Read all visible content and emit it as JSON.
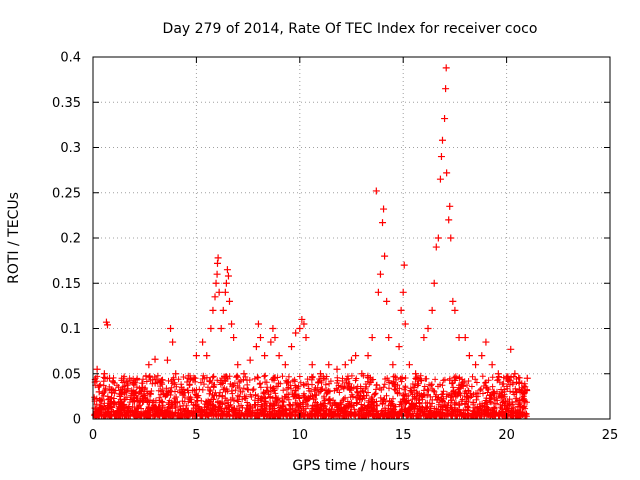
{
  "chart_data": {
    "type": "scatter",
    "title": "Day 279 of 2014, Rate Of TEC Index for receiver coco",
    "xlabel": "GPS time / hours",
    "ylabel": "ROTI / TECUs",
    "xlim": [
      0,
      25
    ],
    "ylim": [
      0,
      0.4
    ],
    "x_ticks": [
      0,
      5,
      10,
      15,
      20,
      25
    ],
    "y_ticks": [
      0,
      0.05,
      0.1,
      0.15,
      0.2,
      0.25,
      0.3,
      0.35,
      0.4
    ],
    "x_tick_labels": [
      "0",
      "5",
      "10",
      "15",
      "20",
      "25"
    ],
    "y_tick_labels": [
      "0",
      "0.05",
      "0.1",
      "0.15",
      "0.2",
      "0.25",
      "0.3",
      "0.35",
      "0.4"
    ],
    "grid": true,
    "marker": "+",
    "marker_color": "#ff0000",
    "series": [
      {
        "name": "ROTI",
        "points": [
          [
            0.1,
            0.012
          ],
          [
            0.2,
            0.055
          ],
          [
            0.3,
            0.03
          ],
          [
            0.4,
            0.02
          ],
          [
            0.55,
            0.05
          ],
          [
            0.65,
            0.107
          ],
          [
            0.7,
            0.104
          ],
          [
            0.8,
            0.045
          ],
          [
            1.0,
            0.018
          ],
          [
            1.3,
            0.025
          ],
          [
            1.6,
            0.03
          ],
          [
            2.0,
            0.02
          ],
          [
            2.4,
            0.035
          ],
          [
            2.7,
            0.06
          ],
          [
            3.0,
            0.066
          ],
          [
            3.3,
            0.04
          ],
          [
            3.6,
            0.065
          ],
          [
            3.75,
            0.1
          ],
          [
            3.85,
            0.085
          ],
          [
            4.0,
            0.05
          ],
          [
            4.3,
            0.03
          ],
          [
            4.6,
            0.045
          ],
          [
            5.0,
            0.07
          ],
          [
            5.3,
            0.085
          ],
          [
            5.5,
            0.07
          ],
          [
            5.7,
            0.1
          ],
          [
            5.8,
            0.12
          ],
          [
            5.9,
            0.135
          ],
          [
            5.95,
            0.15
          ],
          [
            6.0,
            0.16
          ],
          [
            6.02,
            0.172
          ],
          [
            6.05,
            0.178
          ],
          [
            6.1,
            0.14
          ],
          [
            6.2,
            0.1
          ],
          [
            6.3,
            0.12
          ],
          [
            6.4,
            0.14
          ],
          [
            6.45,
            0.15
          ],
          [
            6.5,
            0.165
          ],
          [
            6.55,
            0.158
          ],
          [
            6.6,
            0.13
          ],
          [
            6.7,
            0.105
          ],
          [
            6.8,
            0.09
          ],
          [
            7.0,
            0.06
          ],
          [
            7.3,
            0.05
          ],
          [
            7.6,
            0.065
          ],
          [
            7.9,
            0.08
          ],
          [
            8.0,
            0.105
          ],
          [
            8.1,
            0.09
          ],
          [
            8.3,
            0.07
          ],
          [
            8.6,
            0.085
          ],
          [
            8.7,
            0.1
          ],
          [
            8.8,
            0.09
          ],
          [
            9.0,
            0.07
          ],
          [
            9.3,
            0.06
          ],
          [
            9.6,
            0.08
          ],
          [
            9.8,
            0.095
          ],
          [
            10.0,
            0.1
          ],
          [
            10.1,
            0.11
          ],
          [
            10.2,
            0.105
          ],
          [
            10.3,
            0.09
          ],
          [
            10.6,
            0.06
          ],
          [
            11.0,
            0.05
          ],
          [
            11.4,
            0.06
          ],
          [
            11.8,
            0.055
          ],
          [
            12.2,
            0.06
          ],
          [
            12.5,
            0.065
          ],
          [
            12.7,
            0.07
          ],
          [
            13.0,
            0.05
          ],
          [
            13.3,
            0.07
          ],
          [
            13.5,
            0.09
          ],
          [
            13.7,
            0.252
          ],
          [
            13.8,
            0.14
          ],
          [
            13.9,
            0.16
          ],
          [
            14.0,
            0.217
          ],
          [
            14.05,
            0.232
          ],
          [
            14.1,
            0.18
          ],
          [
            14.2,
            0.13
          ],
          [
            14.3,
            0.09
          ],
          [
            14.5,
            0.06
          ],
          [
            14.8,
            0.08
          ],
          [
            14.9,
            0.12
          ],
          [
            15.0,
            0.14
          ],
          [
            15.05,
            0.17
          ],
          [
            15.1,
            0.105
          ],
          [
            15.3,
            0.06
          ],
          [
            15.6,
            0.05
          ],
          [
            16.0,
            0.09
          ],
          [
            16.2,
            0.1
          ],
          [
            16.4,
            0.12
          ],
          [
            16.5,
            0.15
          ],
          [
            16.6,
            0.19
          ],
          [
            16.7,
            0.2
          ],
          [
            16.8,
            0.265
          ],
          [
            16.85,
            0.29
          ],
          [
            16.9,
            0.308
          ],
          [
            17.0,
            0.332
          ],
          [
            17.05,
            0.365
          ],
          [
            17.08,
            0.388
          ],
          [
            17.1,
            0.272
          ],
          [
            17.2,
            0.22
          ],
          [
            17.25,
            0.235
          ],
          [
            17.3,
            0.2
          ],
          [
            17.4,
            0.13
          ],
          [
            17.5,
            0.12
          ],
          [
            17.7,
            0.09
          ],
          [
            18.0,
            0.09
          ],
          [
            18.2,
            0.07
          ],
          [
            18.5,
            0.06
          ],
          [
            18.8,
            0.07
          ],
          [
            19.0,
            0.085
          ],
          [
            19.3,
            0.06
          ],
          [
            19.6,
            0.05
          ],
          [
            20.0,
            0.045
          ],
          [
            20.2,
            0.077
          ],
          [
            20.4,
            0.05
          ],
          [
            20.6,
            0.04
          ],
          [
            20.8,
            0.03
          ],
          [
            21.0,
            0.045
          ]
        ]
      }
    ]
  }
}
